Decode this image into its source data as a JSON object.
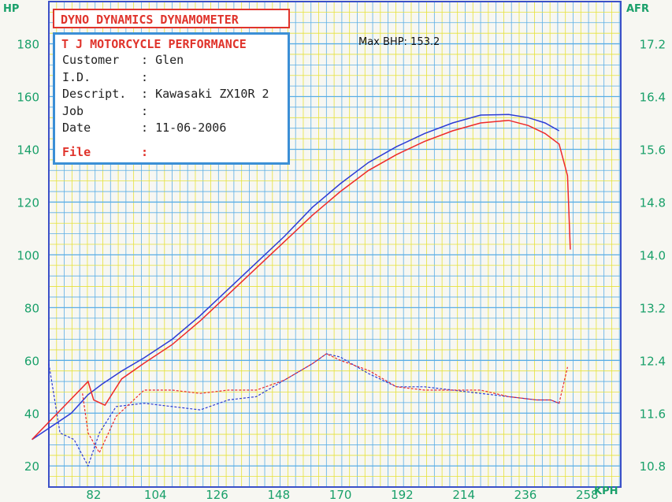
{
  "header": {
    "title": "DYNO DYNAMICS DYNAMOMETER",
    "shop": "T J MOTORCYCLE PERFORMANCE",
    "fields": [
      {
        "label": "Customer",
        "value": "Glen"
      },
      {
        "label": "I.D.",
        "value": ""
      },
      {
        "label": "Descript.",
        "value": "Kawasaki ZX10R 2"
      },
      {
        "label": "Job",
        "value": ""
      },
      {
        "label": "Date",
        "value": "11-06-2006"
      },
      {
        "label": "File",
        "value": ""
      }
    ],
    "max_bhp": "Max BHP: 153.2"
  },
  "colors": {
    "grid": "#5aaee6",
    "grid_alt": "#e6e23a",
    "blue_run": "#2d3bd6",
    "red_run": "#ee2a2a",
    "axis_text": "#1aa06a",
    "border": "#3b50c8"
  },
  "chart_data": {
    "type": "line",
    "ylabel": "HP",
    "y2label": "AFR",
    "xlabel": "KPH",
    "x_ticks": [
      82,
      104,
      126,
      148,
      170,
      192,
      214,
      236,
      258
    ],
    "y_ticks": [
      20,
      40,
      60,
      80,
      100,
      120,
      140,
      160,
      180
    ],
    "y2_ticks": [
      "10.8",
      "11.6",
      "12.4",
      "13.2",
      "14.0",
      "14.8",
      "15.6",
      "16.4",
      "17.2"
    ],
    "xlim": [
      66,
      270
    ],
    "ylim": [
      12,
      196
    ],
    "y2lim": [
      10.48,
      17.84
    ],
    "grid": true,
    "series": [
      {
        "style": "solid",
        "color": "blue",
        "axis": "hp",
        "x": [
          60,
          74,
          80,
          85,
          92,
          100,
          110,
          120,
          130,
          140,
          150,
          160,
          170,
          180,
          190,
          200,
          210,
          220,
          230,
          237,
          243,
          248
        ],
        "y": [
          30,
          40,
          47,
          51,
          56,
          61,
          68,
          77,
          87,
          97,
          107,
          118,
          127,
          135,
          141,
          146,
          150,
          153,
          153.2,
          152,
          150,
          147
        ]
      },
      {
        "style": "solid",
        "color": "red",
        "axis": "hp",
        "x": [
          60,
          80,
          82,
          86,
          92,
          100,
          110,
          120,
          130,
          140,
          150,
          160,
          170,
          180,
          190,
          200,
          210,
          220,
          230,
          237,
          243,
          248,
          251,
          252
        ],
        "y": [
          30,
          52,
          45,
          43,
          53,
          59,
          66,
          75,
          85,
          95,
          105,
          115,
          124,
          132,
          138,
          143,
          147,
          150,
          151,
          149,
          146,
          142,
          130,
          102
        ]
      },
      {
        "style": "dashed",
        "color": "blue",
        "axis": "afr",
        "x": [
          66,
          70,
          75,
          80,
          84,
          90,
          100,
          110,
          120,
          130,
          140,
          150,
          160,
          165,
          170,
          180,
          190,
          200,
          210,
          220,
          230,
          240,
          245,
          248
        ],
        "y": [
          12.35,
          11.3,
          11.2,
          10.8,
          11.3,
          11.7,
          11.75,
          11.7,
          11.65,
          11.8,
          11.85,
          12.1,
          12.35,
          12.5,
          12.45,
          12.2,
          12.0,
          12.0,
          11.95,
          11.9,
          11.85,
          11.8,
          11.8,
          11.75
        ]
      },
      {
        "style": "dashed",
        "color": "red",
        "axis": "afr",
        "x": [
          78,
          80,
          84,
          90,
          100,
          110,
          120,
          130,
          140,
          150,
          160,
          165,
          170,
          180,
          190,
          200,
          210,
          220,
          230,
          240,
          245,
          248,
          251
        ],
        "y": [
          11.9,
          11.3,
          11.0,
          11.55,
          11.95,
          11.95,
          11.9,
          11.95,
          11.95,
          12.1,
          12.35,
          12.5,
          12.4,
          12.25,
          12.0,
          11.95,
          11.95,
          11.95,
          11.85,
          11.8,
          11.8,
          11.75,
          12.3
        ]
      }
    ]
  }
}
